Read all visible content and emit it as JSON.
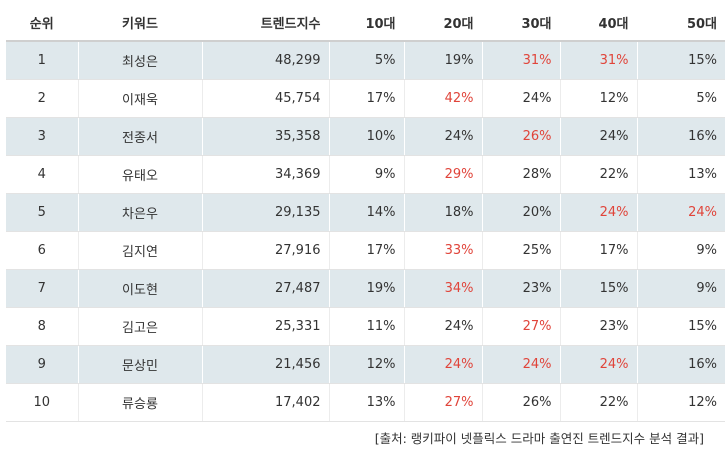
{
  "table": {
    "headers": [
      "순위",
      "키워드",
      "트렌드지수",
      "10대",
      "20대",
      "30대",
      "40대",
      "50대"
    ],
    "highlight_color": "#e0443a",
    "rows": [
      {
        "cells": [
          "1",
          "최성은",
          "48,299",
          "5%",
          "19%",
          "31%",
          "31%",
          "15%"
        ],
        "highlight": [
          5,
          6
        ]
      },
      {
        "cells": [
          "2",
          "이재욱",
          "45,754",
          "17%",
          "42%",
          "24%",
          "12%",
          "5%"
        ],
        "highlight": [
          4
        ]
      },
      {
        "cells": [
          "3",
          "전종서",
          "35,358",
          "10%",
          "24%",
          "26%",
          "24%",
          "16%"
        ],
        "highlight": [
          5
        ]
      },
      {
        "cells": [
          "4",
          "유태오",
          "34,369",
          "9%",
          "29%",
          "28%",
          "22%",
          "13%"
        ],
        "highlight": [
          4
        ]
      },
      {
        "cells": [
          "5",
          "차은우",
          "29,135",
          "14%",
          "18%",
          "20%",
          "24%",
          "24%"
        ],
        "highlight": [
          6,
          7
        ]
      },
      {
        "cells": [
          "6",
          "김지연",
          "27,916",
          "17%",
          "33%",
          "25%",
          "17%",
          "9%"
        ],
        "highlight": [
          4
        ]
      },
      {
        "cells": [
          "7",
          "이도현",
          "27,487",
          "19%",
          "34%",
          "23%",
          "15%",
          "9%"
        ],
        "highlight": [
          4
        ]
      },
      {
        "cells": [
          "8",
          "김고은",
          "25,331",
          "11%",
          "24%",
          "27%",
          "23%",
          "15%"
        ],
        "highlight": [
          5
        ]
      },
      {
        "cells": [
          "9",
          "문상민",
          "21,456",
          "12%",
          "24%",
          "24%",
          "24%",
          "16%"
        ],
        "highlight": [
          4,
          5,
          6
        ]
      },
      {
        "cells": [
          "10",
          "류승룡",
          "17,402",
          "13%",
          "27%",
          "26%",
          "22%",
          "12%"
        ],
        "highlight": [
          4
        ]
      }
    ]
  },
  "source": "[출처: 랭키파이 넷플릭스 드라마 출연진 트렌드지수 분석 결과]"
}
